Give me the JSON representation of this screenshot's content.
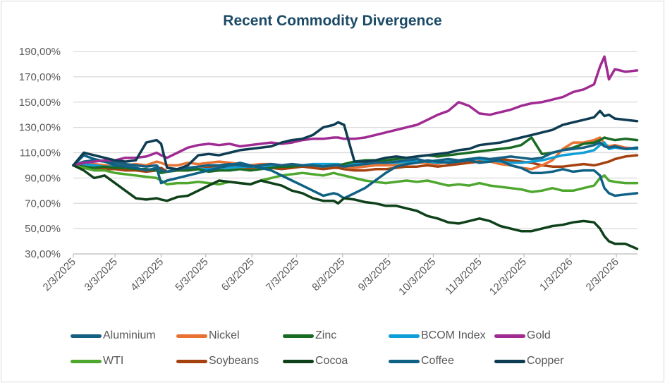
{
  "chart_data": {
    "type": "line",
    "title": "Recent Commodity Divergence",
    "xlabel": "",
    "ylabel": "",
    "ylim": [
      30,
      190
    ],
    "y_ticks": [
      "30,00%",
      "50,00%",
      "70,00%",
      "90,00%",
      "110,00%",
      "130,00%",
      "150,00%",
      "170,00%",
      "190,00%"
    ],
    "y_tick_values": [
      30,
      50,
      70,
      90,
      110,
      130,
      150,
      170,
      190
    ],
    "x_ticks": [
      "2/3/2025",
      "3/3/2025",
      "4/3/2025",
      "5/3/2025",
      "6/3/2025",
      "7/3/2025",
      "8/3/2025",
      "9/3/2025",
      "10/3/2025",
      "11/3/2025",
      "12/3/2025",
      "1/3/2026",
      "2/3/2026"
    ],
    "x_tick_days": [
      0,
      28,
      59,
      89,
      120,
      150,
      181,
      212,
      242,
      273,
      303,
      334,
      365
    ],
    "x_range_days": [
      0,
      379
    ],
    "x_start": "2/3/2025",
    "grid": true,
    "legend_position": "bottom",
    "x_days": [
      0,
      7,
      14,
      21,
      28,
      35,
      42,
      49,
      56,
      59,
      63,
      70,
      77,
      84,
      91,
      98,
      105,
      112,
      119,
      126,
      133,
      140,
      147,
      154,
      161,
      168,
      175,
      178,
      182,
      189,
      196,
      203,
      210,
      217,
      224,
      231,
      238,
      245,
      252,
      259,
      266,
      273,
      280,
      287,
      294,
      301,
      308,
      315,
      322,
      329,
      336,
      343,
      350,
      354,
      357,
      360,
      364,
      371,
      379
    ],
    "series": [
      {
        "name": "Aluminium",
        "color": "#156082",
        "values": [
          100,
          103,
          104,
          103,
          102,
          101,
          100,
          99,
          100,
          96,
          95,
          97,
          98,
          99,
          100,
          100,
          101,
          100,
          99,
          100,
          101,
          100,
          101,
          100,
          100,
          99,
          100,
          100,
          99,
          100,
          101,
          102,
          102,
          103,
          104,
          105,
          103,
          104,
          105,
          104,
          105,
          106,
          105,
          106,
          107,
          106,
          105,
          106,
          110,
          112,
          113,
          114,
          116,
          118,
          115,
          114,
          115,
          113,
          114
        ]
      },
      {
        "name": "Nickel",
        "color": "#e97132",
        "values": [
          100,
          102,
          101,
          100,
          99,
          100,
          101,
          100,
          103,
          102,
          100,
          100,
          102,
          101,
          102,
          103,
          102,
          101,
          100,
          101,
          101,
          100,
          101,
          100,
          100,
          99,
          100,
          100,
          99,
          98,
          99,
          100,
          100,
          100,
          101,
          102,
          102,
          101,
          103,
          104,
          104,
          105,
          103,
          101,
          100,
          98,
          97,
          100,
          104,
          113,
          118,
          118,
          120,
          122,
          117,
          115,
          116,
          114,
          113
        ]
      },
      {
        "name": "Zinc",
        "color": "#196b24",
        "values": [
          100,
          99,
          98,
          99,
          98,
          98,
          97,
          97,
          96,
          94,
          95,
          96,
          96,
          97,
          95,
          96,
          96,
          97,
          96,
          97,
          98,
          99,
          99,
          100,
          100,
          99,
          100,
          100,
          101,
          103,
          104,
          104,
          104,
          105,
          106,
          107,
          108,
          107,
          108,
          109,
          110,
          111,
          112,
          113,
          114,
          116,
          122,
          109,
          110,
          112,
          114,
          117,
          118,
          120,
          122,
          121,
          120,
          121,
          120
        ]
      },
      {
        "name": "BCOM Index",
        "color": "#0f9ed5",
        "values": [
          100,
          101,
          100,
          99,
          99,
          98,
          97,
          97,
          96,
          94,
          95,
          96,
          97,
          97,
          97,
          98,
          98,
          99,
          99,
          99,
          100,
          100,
          100,
          100,
          101,
          101,
          101,
          101,
          100,
          101,
          101,
          102,
          102,
          102,
          103,
          103,
          103,
          102,
          103,
          104,
          105,
          105,
          104,
          103,
          102,
          102,
          103,
          104,
          106,
          108,
          109,
          110,
          112,
          116,
          118,
          113,
          114,
          113,
          113
        ]
      },
      {
        "name": "Gold",
        "color": "#a02b93",
        "values": [
          100,
          102,
          103,
          104,
          104,
          106,
          106,
          107,
          110,
          108,
          106,
          110,
          114,
          116,
          117,
          116,
          117,
          115,
          116,
          117,
          118,
          117,
          118,
          120,
          121,
          121,
          122,
          122,
          121,
          121,
          122,
          124,
          126,
          128,
          130,
          132,
          136,
          140,
          143,
          150,
          147,
          141,
          140,
          142,
          144,
          147,
          149,
          150,
          152,
          154,
          158,
          160,
          164,
          178,
          186,
          168,
          176,
          174,
          175
        ]
      },
      {
        "name": "WTI",
        "color": "#4ea72e",
        "values": [
          100,
          98,
          96,
          96,
          94,
          93,
          92,
          91,
          90,
          88,
          85,
          86,
          86,
          87,
          86,
          85,
          87,
          86,
          85,
          88,
          90,
          92,
          93,
          94,
          93,
          92,
          94,
          93,
          92,
          90,
          88,
          87,
          86,
          87,
          88,
          87,
          88,
          86,
          84,
          85,
          84,
          86,
          84,
          83,
          82,
          81,
          79,
          80,
          82,
          80,
          80,
          82,
          84,
          90,
          92,
          88,
          87,
          86,
          86
        ]
      },
      {
        "name": "Soybeans",
        "color": "#a5410f",
        "values": [
          100,
          99,
          98,
          97,
          97,
          96,
          96,
          95,
          96,
          98,
          95,
          96,
          96,
          97,
          98,
          99,
          100,
          99,
          98,
          99,
          98,
          97,
          98,
          99,
          98,
          97,
          98,
          98,
          97,
          96,
          96,
          97,
          97,
          98,
          99,
          99,
          100,
          99,
          100,
          101,
          102,
          103,
          104,
          105,
          104,
          103,
          102,
          100,
          99,
          99,
          100,
          101,
          100,
          101,
          102,
          103,
          105,
          107,
          108
        ]
      },
      {
        "name": "Cocoa",
        "color": "#0e4119",
        "values": [
          100,
          96,
          90,
          92,
          86,
          80,
          74,
          73,
          74,
          73,
          72,
          75,
          76,
          80,
          84,
          88,
          87,
          86,
          85,
          88,
          86,
          84,
          80,
          78,
          74,
          72,
          72,
          70,
          74,
          73,
          71,
          70,
          68,
          68,
          66,
          64,
          60,
          58,
          55,
          54,
          56,
          58,
          56,
          52,
          50,
          48,
          48,
          50,
          52,
          53,
          55,
          56,
          55,
          50,
          44,
          40,
          38,
          38,
          34
        ]
      },
      {
        "name": "Coffee",
        "color": "#0f6184",
        "values": [
          100,
          108,
          105,
          103,
          100,
          99,
          98,
          96,
          98,
          86,
          88,
          90,
          92,
          94,
          96,
          98,
          100,
          102,
          100,
          98,
          96,
          92,
          88,
          84,
          80,
          76,
          78,
          77,
          74,
          78,
          82,
          88,
          94,
          99,
          101,
          102,
          104,
          103,
          102,
          103,
          104,
          102,
          103,
          104,
          100,
          98,
          94,
          94,
          95,
          97,
          95,
          96,
          96,
          92,
          82,
          78,
          76,
          77,
          78
        ]
      },
      {
        "name": "Copper",
        "color": "#0e3c52",
        "values": [
          100,
          110,
          108,
          106,
          104,
          103,
          104,
          118,
          120,
          117,
          98,
          97,
          100,
          108,
          109,
          108,
          110,
          112,
          113,
          114,
          115,
          118,
          120,
          121,
          124,
          130,
          132,
          134,
          132,
          103,
          103,
          104,
          106,
          107,
          106,
          107,
          108,
          109,
          110,
          112,
          113,
          116,
          117,
          118,
          120,
          122,
          124,
          126,
          128,
          132,
          134,
          136,
          138,
          143,
          139,
          140,
          137,
          136,
          135
        ]
      }
    ]
  }
}
